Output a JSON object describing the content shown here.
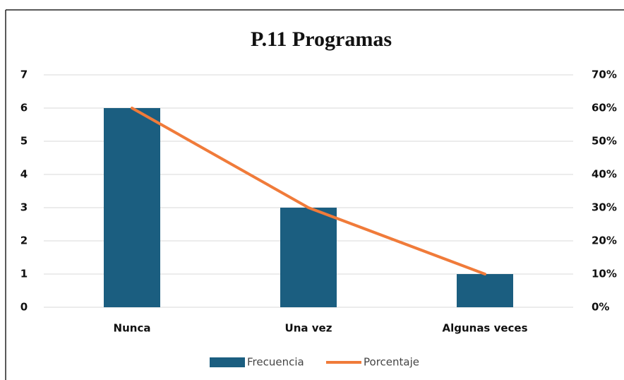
{
  "chart_data": {
    "type": "bar-line",
    "title": "P.11  Programas",
    "categories": [
      "Nunca",
      "Una vez",
      "Algunas veces"
    ],
    "series": [
      {
        "name": "Frecuencia",
        "type": "bar",
        "color": "#1b5e80",
        "values": [
          6,
          3,
          1
        ]
      },
      {
        "name": "Porcentaje",
        "type": "line",
        "color": "#f07b3a",
        "axis": "y2",
        "values": [
          60,
          30,
          10
        ]
      }
    ],
    "ylim": [
      0,
      7
    ],
    "yticks": [
      0,
      1,
      2,
      3,
      4,
      5,
      6,
      7
    ],
    "y2lim": [
      0,
      70
    ],
    "y2ticks": [
      {
        "value": 0,
        "label": "0%"
      },
      {
        "value": 10,
        "label": "10%"
      },
      {
        "value": 20,
        "label": "20%"
      },
      {
        "value": 30,
        "label": "30%"
      },
      {
        "value": 40,
        "label": "40%"
      },
      {
        "value": 50,
        "label": "50%"
      },
      {
        "value": 60,
        "label": "60%"
      },
      {
        "value": 70,
        "label": "70%"
      }
    ],
    "grid": true,
    "legend": "bottom"
  }
}
